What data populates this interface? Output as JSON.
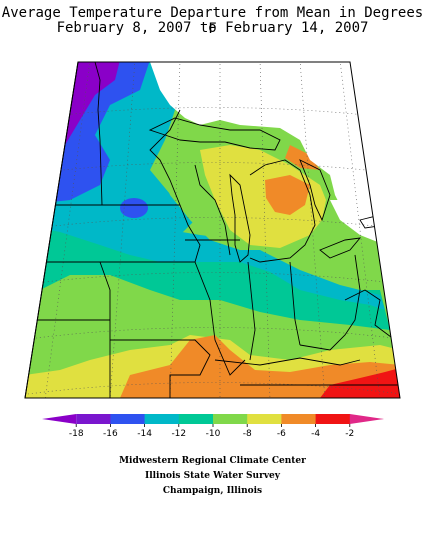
{
  "title": {
    "line1": "Average Temperature Departure from Mean in Degrees F",
    "line2": "February 8, 2007 to February 14, 2007"
  },
  "legend": {
    "ticks": [
      "-18",
      "-16",
      "-14",
      "-12",
      "-10",
      "-8",
      "-6",
      "-4",
      "-2"
    ],
    "colors": [
      "#8a00c8",
      "#7a16ce",
      "#2e52f0",
      "#00b8c8",
      "#00c896",
      "#80d84a",
      "#e0e040",
      "#f08a28",
      "#f01414",
      "#e02888"
    ]
  },
  "credits": {
    "line1": "Midwestern Regional Climate Center",
    "line2": "Illinois State Water Survey",
    "line3": "Champaign, Illinois"
  }
}
